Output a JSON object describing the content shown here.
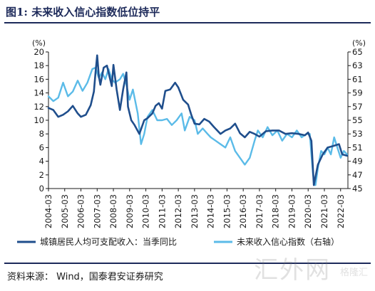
{
  "header": {
    "title": "图1: 未来收入信心指数低位持平"
  },
  "footer": {
    "source": "资料来源： Wind，国泰君安证券研究"
  },
  "watermark": {
    "main": "汇外网",
    "sub": "格隆汇"
  },
  "chart_data": {
    "type": "line",
    "title": "",
    "units": {
      "left": "(%)",
      "right": "(%)"
    },
    "x_labels": [
      "2004-03",
      "2005-03",
      "2006-03",
      "2007-03",
      "2008-03",
      "2009-03",
      "2010-03",
      "2011-03",
      "2012-03",
      "2013-03",
      "2014-03",
      "2015-03",
      "2016-03",
      "2017-03",
      "2018-03",
      "2019-03",
      "2020-03",
      "2021-03",
      "2022-03"
    ],
    "y_left": {
      "min": 0,
      "max": 20,
      "ticks": [
        0,
        2,
        4,
        6,
        8,
        10,
        12,
        14,
        16,
        18,
        20
      ]
    },
    "y_right": {
      "min": 45,
      "max": 65,
      "ticks": [
        45,
        47,
        49,
        51,
        53,
        55,
        57,
        59,
        61,
        63,
        65
      ]
    },
    "grid": false,
    "legend_position": "bottom",
    "series": [
      {
        "name": "城镇居民人均可支配收入：当季同比",
        "axis": "left",
        "color": "#1f4e8c",
        "points": [
          [
            2004.0,
            11.8
          ],
          [
            2004.3,
            11.5
          ],
          [
            2004.6,
            10.5
          ],
          [
            2004.9,
            10.8
          ],
          [
            2005.2,
            11.3
          ],
          [
            2005.5,
            12.1
          ],
          [
            2005.8,
            11.0
          ],
          [
            2006.0,
            10.5
          ],
          [
            2006.3,
            10.8
          ],
          [
            2006.6,
            12.2
          ],
          [
            2006.8,
            14.2
          ],
          [
            2006.9,
            17.0
          ],
          [
            2007.0,
            19.5
          ],
          [
            2007.1,
            16.5
          ],
          [
            2007.2,
            15.2
          ],
          [
            2007.4,
            17.7
          ],
          [
            2007.6,
            18.0
          ],
          [
            2007.8,
            16.0
          ],
          [
            2007.9,
            15.0
          ],
          [
            2008.0,
            18.1
          ],
          [
            2008.2,
            14.5
          ],
          [
            2008.4,
            11.5
          ],
          [
            2008.6,
            14.5
          ],
          [
            2008.8,
            17.0
          ],
          [
            2008.9,
            12.0
          ],
          [
            2009.1,
            10.0
          ],
          [
            2009.3,
            9.3
          ],
          [
            2009.6,
            8.0
          ],
          [
            2009.9,
            10.0
          ],
          [
            2010.1,
            10.3
          ],
          [
            2010.4,
            11.0
          ],
          [
            2010.6,
            12.1
          ],
          [
            2010.8,
            12.5
          ],
          [
            2011.0,
            11.7
          ],
          [
            2011.2,
            14.3
          ],
          [
            2011.5,
            14.5
          ],
          [
            2011.8,
            15.5
          ],
          [
            2012.0,
            14.8
          ],
          [
            2012.3,
            13.0
          ],
          [
            2012.6,
            12.3
          ],
          [
            2012.8,
            10.8
          ],
          [
            2013.0,
            9.5
          ],
          [
            2013.3,
            9.4
          ],
          [
            2013.6,
            10.2
          ],
          [
            2013.9,
            9.8
          ],
          [
            2014.2,
            9.0
          ],
          [
            2014.6,
            8.0
          ],
          [
            2014.9,
            8.5
          ],
          [
            2015.2,
            8.8
          ],
          [
            2015.5,
            9.5
          ],
          [
            2015.8,
            8.1
          ],
          [
            2016.1,
            7.5
          ],
          [
            2016.4,
            8.3
          ],
          [
            2016.7,
            8.0
          ],
          [
            2017.0,
            7.6
          ],
          [
            2017.4,
            8.4
          ],
          [
            2017.8,
            8.5
          ],
          [
            2018.2,
            8.5
          ],
          [
            2018.6,
            8.0
          ],
          [
            2019.0,
            8.1
          ],
          [
            2019.4,
            8.0
          ],
          [
            2019.8,
            7.8
          ],
          [
            2020.0,
            8.2
          ],
          [
            2020.2,
            7.0
          ],
          [
            2020.35,
            0.5
          ],
          [
            2020.6,
            3.5
          ],
          [
            2020.9,
            5.0
          ],
          [
            2021.2,
            6.0
          ],
          [
            2021.5,
            6.2
          ],
          [
            2021.9,
            6.5
          ],
          [
            2022.1,
            5.0
          ],
          [
            2022.4,
            4.8
          ]
        ]
      },
      {
        "name": "未来收入信心指数（右轴）",
        "axis": "right",
        "color": "#5bbbe8",
        "points": [
          [
            2004.0,
            58.5
          ],
          [
            2004.3,
            57.8
          ],
          [
            2004.6,
            58.3
          ],
          [
            2004.9,
            60.5
          ],
          [
            2005.2,
            58.5
          ],
          [
            2005.5,
            59.2
          ],
          [
            2005.8,
            60.8
          ],
          [
            2006.1,
            59.3
          ],
          [
            2006.4,
            60.5
          ],
          [
            2006.7,
            62.5
          ],
          [
            2006.9,
            62.7
          ],
          [
            2007.1,
            61.2
          ],
          [
            2007.3,
            62.0
          ],
          [
            2007.5,
            61.0
          ],
          [
            2007.7,
            62.5
          ],
          [
            2007.9,
            61.0
          ],
          [
            2008.1,
            60.5
          ],
          [
            2008.4,
            61.0
          ],
          [
            2008.6,
            61.8
          ],
          [
            2008.8,
            60.2
          ],
          [
            2009.0,
            58.0
          ],
          [
            2009.2,
            59.5
          ],
          [
            2009.5,
            56.0
          ],
          [
            2009.7,
            51.5
          ],
          [
            2009.9,
            53.0
          ],
          [
            2010.1,
            55.5
          ],
          [
            2010.4,
            56.5
          ],
          [
            2010.7,
            55.0
          ],
          [
            2011.0,
            55.0
          ],
          [
            2011.3,
            55.2
          ],
          [
            2011.6,
            54.3
          ],
          [
            2011.9,
            55.0
          ],
          [
            2012.2,
            56.0
          ],
          [
            2012.4,
            53.5
          ],
          [
            2012.7,
            55.5
          ],
          [
            2013.0,
            55.0
          ],
          [
            2013.2,
            53.0
          ],
          [
            2013.5,
            53.8
          ],
          [
            2013.8,
            53.0
          ],
          [
            2014.0,
            52.5
          ],
          [
            2014.3,
            52.0
          ],
          [
            2014.6,
            51.5
          ],
          [
            2014.9,
            51.0
          ],
          [
            2015.2,
            52.5
          ],
          [
            2015.5,
            50.5
          ],
          [
            2015.8,
            49.5
          ],
          [
            2016.1,
            48.5
          ],
          [
            2016.4,
            49.5
          ],
          [
            2016.7,
            52.0
          ],
          [
            2016.9,
            53.5
          ],
          [
            2017.2,
            52.5
          ],
          [
            2017.5,
            54.0
          ],
          [
            2017.8,
            52.8
          ],
          [
            2018.1,
            53.5
          ],
          [
            2018.4,
            52.0
          ],
          [
            2018.7,
            53.0
          ],
          [
            2019.0,
            52.5
          ],
          [
            2019.3,
            53.5
          ],
          [
            2019.6,
            52.5
          ],
          [
            2019.9,
            53.0
          ],
          [
            2020.1,
            53.0
          ],
          [
            2020.3,
            47.0
          ],
          [
            2020.45,
            45.5
          ],
          [
            2020.6,
            48.0
          ],
          [
            2020.8,
            50.5
          ],
          [
            2021.0,
            50.0
          ],
          [
            2021.2,
            51.0
          ],
          [
            2021.4,
            50.0
          ],
          [
            2021.6,
            52.5
          ],
          [
            2021.8,
            51.0
          ],
          [
            2022.0,
            49.5
          ],
          [
            2022.2,
            50.5
          ],
          [
            2022.4,
            50.0
          ]
        ]
      }
    ]
  }
}
